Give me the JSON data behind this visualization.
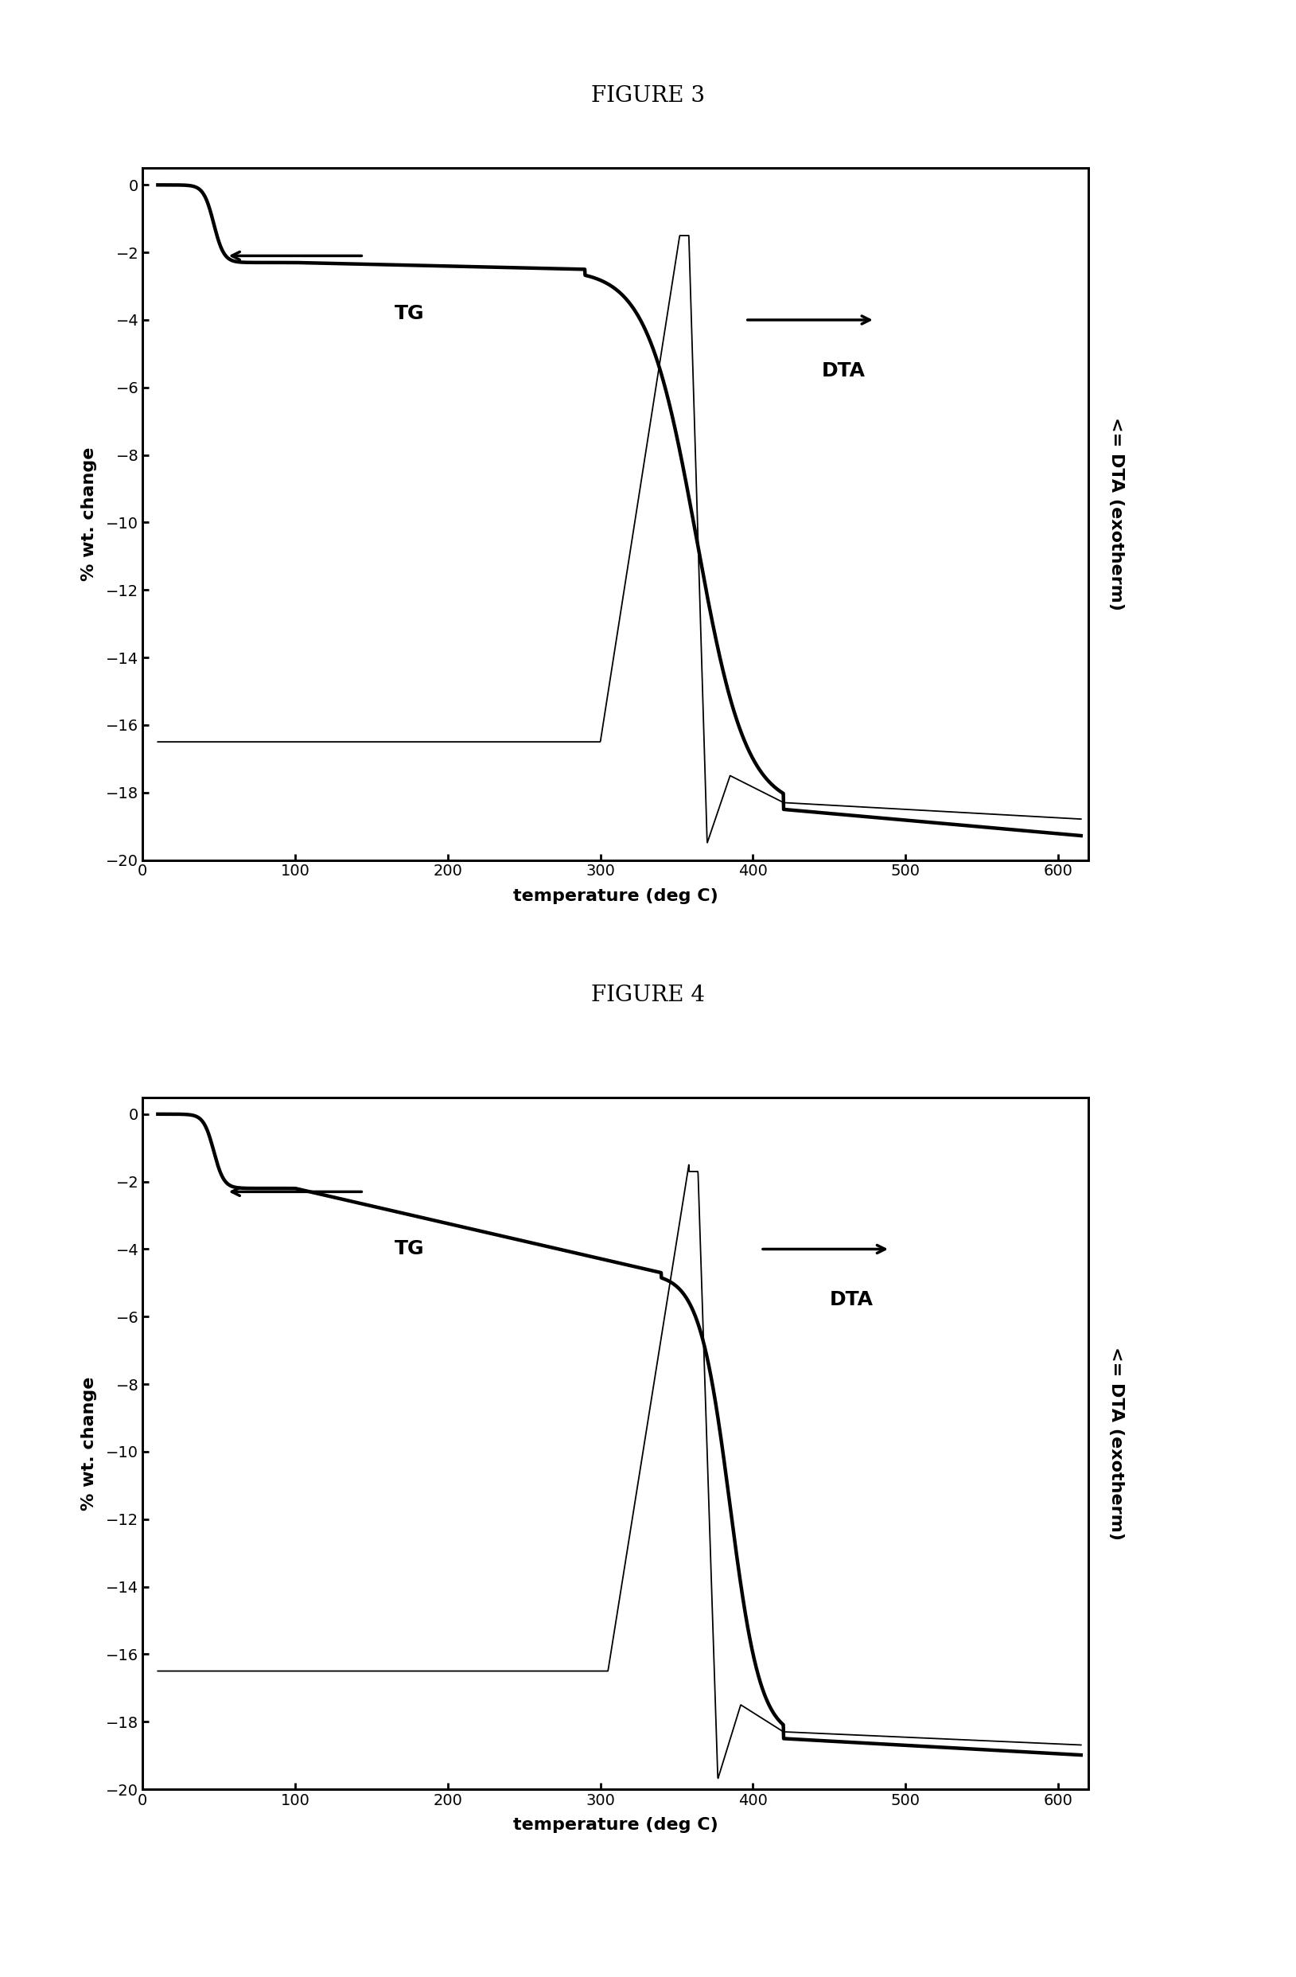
{
  "fig3_title": "FIGURE 3",
  "fig4_title": "FIGURE 4",
  "xlabel": "temperature (deg C)",
  "ylabel": "% wt. change",
  "right_ylabel": "<= DTA (exotherm)",
  "xlim": [
    0,
    620
  ],
  "ylim": [
    -20,
    0.5
  ],
  "xticks": [
    0,
    100,
    200,
    300,
    400,
    500,
    600
  ],
  "yticks": [
    0,
    -2,
    -4,
    -6,
    -8,
    -10,
    -12,
    -14,
    -16,
    -18,
    -20
  ],
  "tg_label": "TG",
  "dta_label": "DTA",
  "background_color": "#ffffff",
  "line_color": "#000000",
  "title_fontsize": 20,
  "axis_label_fontsize": 16,
  "tick_fontsize": 14,
  "annotation_fontsize": 18
}
